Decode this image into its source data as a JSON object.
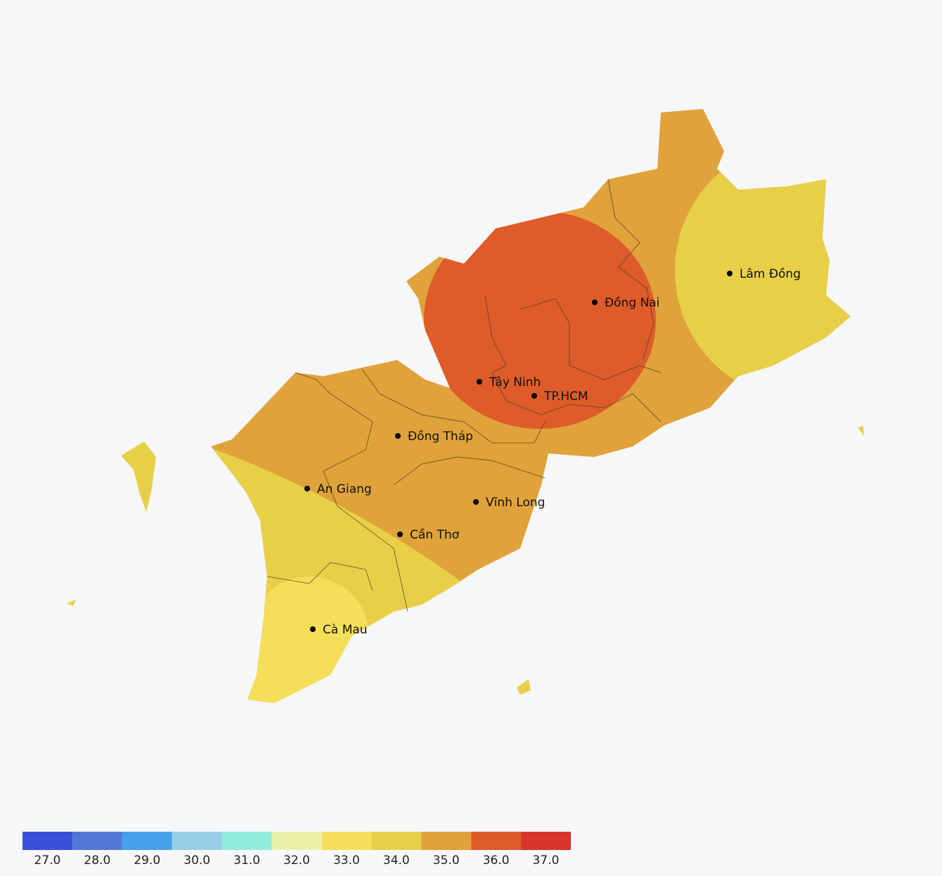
{
  "map": {
    "places": [
      "Lâm Đồng",
      "Đồng Nai",
      "Tây Ninh",
      "TP.HCM",
      "Đồng Tháp",
      "An Giang",
      "Vĩnh Long",
      "Cần Thơ",
      "Cà Mau"
    ],
    "legend": {
      "colors": [
        "#3a4fd9",
        "#4f78d6",
        "#46a0ea",
        "#98cde6",
        "#92ecdb",
        "#eaf1aa",
        "#f5de5a",
        "#e8cf48",
        "#e0a23a",
        "#de5c2a",
        "#d9342b"
      ],
      "ticks": [
        {
          "value": 27,
          "label": "27.0"
        },
        {
          "value": 28,
          "label": "28.0"
        },
        {
          "value": 29,
          "label": "29.0"
        },
        {
          "value": 30,
          "label": "30.0"
        },
        {
          "value": 31,
          "label": "31.0"
        },
        {
          "value": 32,
          "label": "32.0"
        },
        {
          "value": 33,
          "label": "33.0"
        },
        {
          "value": 34,
          "label": "34.0"
        },
        {
          "value": 35,
          "label": "35.0"
        },
        {
          "value": 36,
          "label": "36.0"
        },
        {
          "value": 37,
          "label": "37.0"
        }
      ]
    }
  }
}
